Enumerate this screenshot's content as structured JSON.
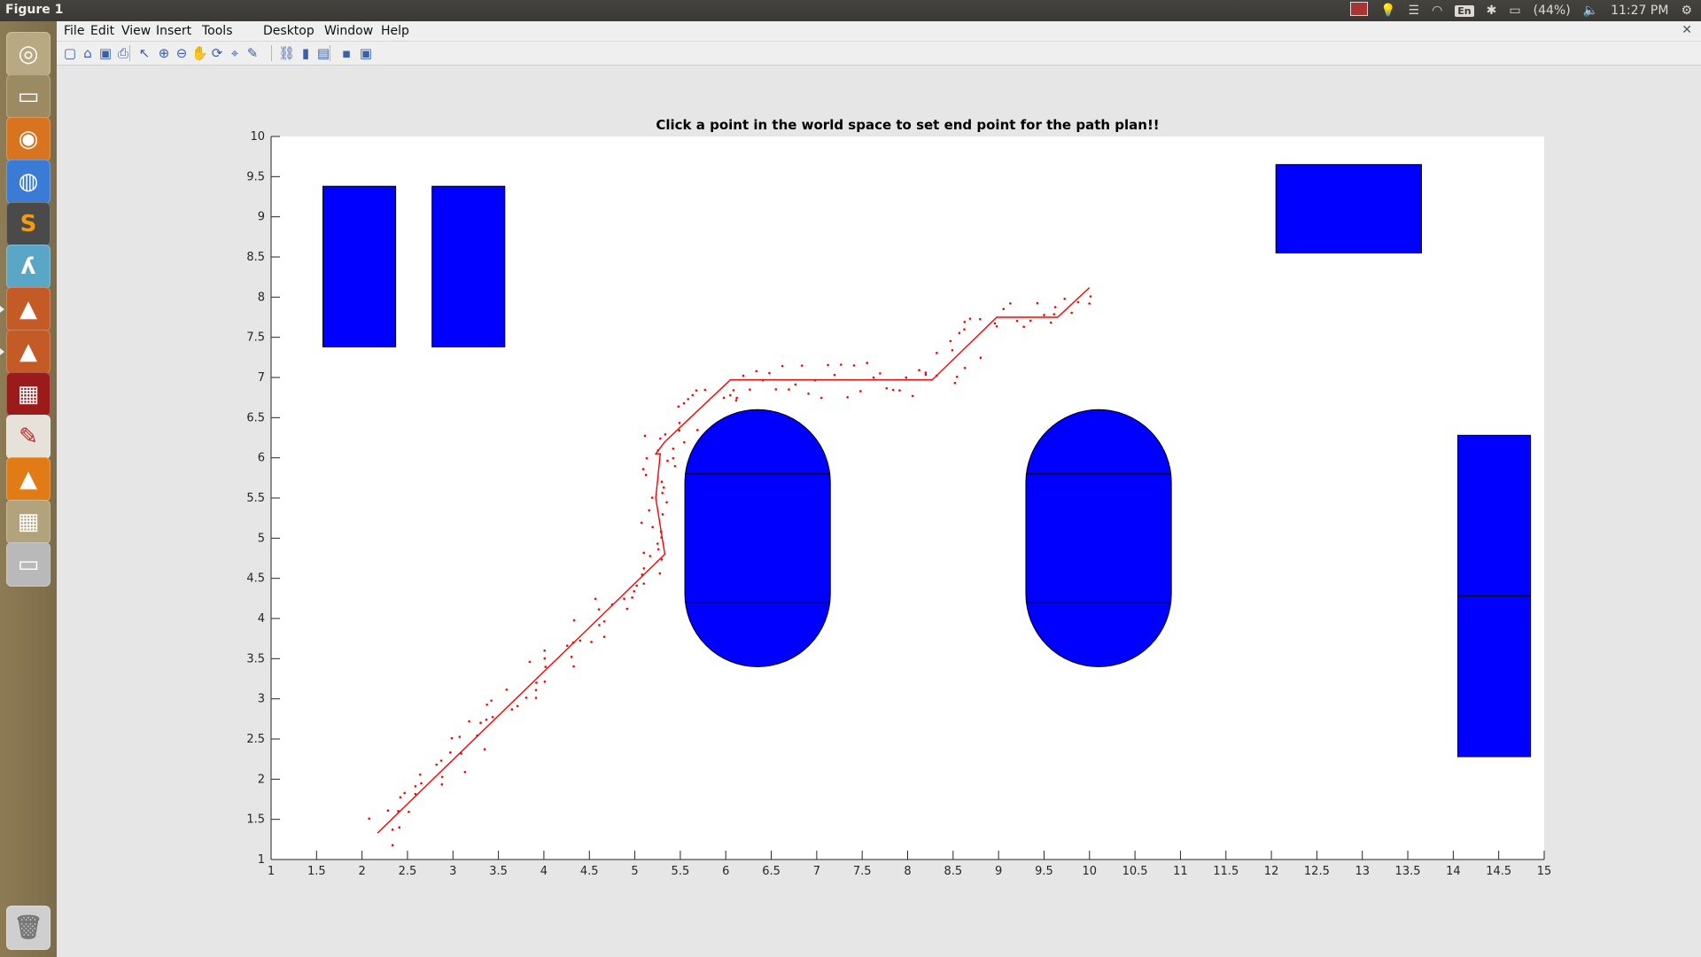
{
  "window": {
    "title": "Figure 1"
  },
  "tray": {
    "keyboard": "En",
    "battery": "(44%)",
    "time": "11:27 PM"
  },
  "menu": [
    "File",
    "Edit",
    "View",
    "Insert",
    "Tools",
    "Desktop",
    "Window",
    "Help"
  ],
  "toolbar_icons": [
    "new-figure-icon",
    "open-file-icon",
    "save-icon",
    "print-icon",
    "pointer-icon",
    "zoom-in-icon",
    "zoom-out-icon",
    "pan-icon",
    "rotate-3d-icon",
    "data-cursor-icon",
    "brush-icon",
    "link-plot-icon",
    "colorbar-icon",
    "legend-icon",
    "hide-plot-tools-icon",
    "show-plot-tools-icon"
  ],
  "launcher_icons": [
    "ubuntu-dash-icon",
    "files-icon",
    "firefox-icon",
    "chrome-icon",
    "sublime-text-icon",
    "terminal-app-icon",
    "matlab-icon",
    "matlab-icon-2",
    "screen-app-icon",
    "writer-icon",
    "vlc-icon",
    "workspace-switcher-icon",
    "drive-icon",
    "trash-icon"
  ],
  "chart_data": {
    "type": "scatter",
    "title": "Click a point in the world space to set end point for the path plan!!",
    "xlabel": "",
    "ylabel": "",
    "xlim": [
      1,
      15
    ],
    "ylim": [
      1,
      10
    ],
    "xticks": [
      "1",
      "1.5",
      "2",
      "2.5",
      "3",
      "3.5",
      "4",
      "4.5",
      "5",
      "5.5",
      "6",
      "6.5",
      "7",
      "7.5",
      "8",
      "8.5",
      "9",
      "9.5",
      "10",
      "10.5",
      "11",
      "11.5",
      "12",
      "12.5",
      "13",
      "13.5",
      "14",
      "14.5",
      "15"
    ],
    "yticks": [
      "1",
      "1.5",
      "2",
      "2.5",
      "3",
      "3.5",
      "4",
      "4.5",
      "5",
      "5.5",
      "6",
      "6.5",
      "7",
      "7.5",
      "8",
      "8.5",
      "9",
      "9.5",
      "10"
    ],
    "grid": false,
    "obstacle_color": "#0000ff",
    "path_color": "#ff0000",
    "obstacles": [
      {
        "shape": "rect",
        "x": [
          1.57,
          2.37
        ],
        "y": [
          7.38,
          9.38
        ]
      },
      {
        "shape": "rect",
        "x": [
          2.77,
          3.57
        ],
        "y": [
          7.38,
          9.38
        ]
      },
      {
        "shape": "rect",
        "x": [
          12.05,
          13.65
        ],
        "y": [
          8.55,
          9.65
        ]
      },
      {
        "shape": "rect",
        "x": [
          14.05,
          14.85
        ],
        "y": [
          2.28,
          6.28
        ],
        "divider_y": 4.28
      },
      {
        "shape": "capsule",
        "x": [
          5.55,
          7.15
        ],
        "y": [
          3.4,
          6.6
        ],
        "lines_y": [
          4.2,
          5.8
        ]
      },
      {
        "shape": "capsule",
        "x": [
          9.3,
          10.9
        ],
        "y": [
          3.4,
          6.6
        ],
        "lines_y": [
          4.2,
          5.8
        ]
      }
    ],
    "path": {
      "x": [
        2.17,
        5.33,
        5.23,
        5.28,
        5.23,
        5.33,
        6.05,
        8.27,
        8.98,
        9.65,
        10.0
      ],
      "y": [
        1.33,
        4.8,
        5.5,
        6.05,
        6.05,
        6.2,
        6.97,
        6.97,
        7.75,
        7.75,
        8.12
      ]
    },
    "samples_description": "scattered red sample points along the planned path"
  }
}
